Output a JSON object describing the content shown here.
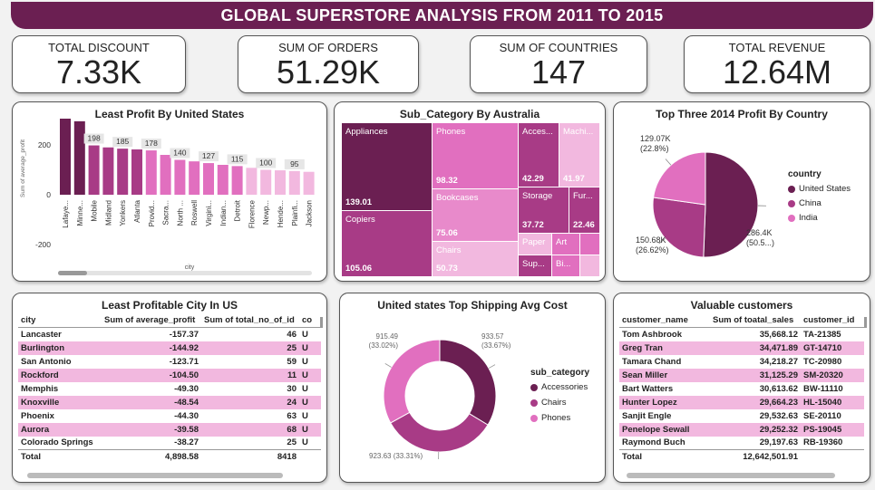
{
  "title": "GLOBAL SUPERSTORE ANALYSIS FROM 2011 TO 2015",
  "kpis": [
    {
      "label": "TOTAL DISCOUNT",
      "value": "7.33K"
    },
    {
      "label": "SUM OF ORDERS",
      "value": "51.29K"
    },
    {
      "label": "SUM OF COUNTRIES",
      "value": "147"
    },
    {
      "label": "TOTAL REVENUE",
      "value": "12.64M"
    }
  ],
  "colors": {
    "dark": "#6b1f52",
    "mid": "#a83b86",
    "light": "#e16fbf",
    "pale": "#f2b8df"
  },
  "bar_panel": {
    "title": "Least Profit By United States",
    "ylabel": "Sum of average_profit",
    "xlabel": "city",
    "y_ticks": [
      "400",
      "200",
      "0",
      "-200"
    ],
    "labels": [
      "323",
      "198",
      "185",
      "178",
      "140",
      "127",
      "115",
      "100",
      "95"
    ]
  },
  "chart_data": [
    {
      "type": "bar",
      "title": "Least Profit By United States",
      "xlabel": "city",
      "ylabel": "Sum of average_profit",
      "ylim": [
        -200,
        400
      ],
      "categories": [
        "Lafaye...",
        "Minne...",
        "Mobile",
        "Midland",
        "Yonkers",
        "Atlanta",
        "Provid...",
        "Sacra...",
        "North ...",
        "Roswell",
        "Virgini...",
        "Indian...",
        "Detroit",
        "Florence",
        "Newp...",
        "Hende...",
        "Plainfi...",
        "Jackson"
      ],
      "values": [
        323,
        295,
        198,
        190,
        185,
        182,
        178,
        160,
        140,
        134,
        127,
        120,
        115,
        108,
        100,
        98,
        95,
        92
      ]
    },
    {
      "type": "pie",
      "title": "Top Three 2014 Profit By Country",
      "legend_title": "country",
      "categories": [
        "United States",
        "China",
        "India"
      ],
      "values": [
        286.4,
        150.68,
        129.07
      ],
      "value_labels": [
        "286.4K (50.5...)",
        "150.68K (26.62%)",
        "129.07K (22.8%)"
      ]
    },
    {
      "type": "pie",
      "title": "United states Top Shipping Avg Cost",
      "legend_title": "sub_category",
      "categories": [
        "Accessories",
        "Chairs",
        "Phones"
      ],
      "values": [
        933.57,
        923.63,
        915.49
      ],
      "value_labels": [
        "933.57 (33.67%)",
        "923.63 (33.31%)",
        "915.49 (33.02%)"
      ]
    }
  ],
  "treemap": {
    "title": "Sub_Category By Australia",
    "cells": [
      {
        "label": "Appliances",
        "value": "139.01"
      },
      {
        "label": "Copiers",
        "value": "105.06"
      },
      {
        "label": "Phones",
        "value": "98.32"
      },
      {
        "label": "Bookcases",
        "value": "75.06"
      },
      {
        "label": "Chairs",
        "value": "50.73"
      },
      {
        "label": "Acces...",
        "value": "42.29"
      },
      {
        "label": "Machi...",
        "value": "41.97"
      },
      {
        "label": "Storage",
        "value": "37.72"
      },
      {
        "label": "Fur...",
        "value": "22.46"
      },
      {
        "label": "Paper",
        "value": ""
      },
      {
        "label": "Art",
        "value": ""
      },
      {
        "label": "Sup...",
        "value": ""
      },
      {
        "label": "Bi...",
        "value": ""
      }
    ]
  },
  "pie_panel": {
    "title": "Top Three 2014 Profit By Country",
    "legend_title": "country",
    "legend": [
      "United States",
      "China",
      "India"
    ],
    "labels": [
      {
        "line1": "286.4K",
        "line2": "(50.5...)"
      },
      {
        "line1": "150.68K",
        "line2": "(26.62%)"
      },
      {
        "line1": "129.07K",
        "line2": "(22.8%)"
      }
    ]
  },
  "donut_panel": {
    "title": "United states Top Shipping Avg Cost",
    "legend_title": "sub_category",
    "legend": [
      "Accessories",
      "Chairs",
      "Phones"
    ],
    "labels": [
      {
        "line1": "933.57",
        "line2": "(33.67%)"
      },
      {
        "line1": "923.63 (33.31%)",
        "line2": ""
      },
      {
        "line1": "915.49",
        "line2": "(33.02%)"
      }
    ]
  },
  "city_table": {
    "title": "Least Profitable City In US",
    "columns": [
      "city",
      "Sum of average_profit",
      "Sum of total_no_of_id",
      "co"
    ],
    "rows": [
      [
        "Lancaster",
        "-157.37",
        "46",
        "U"
      ],
      [
        "Burlington",
        "-144.92",
        "25",
        "U"
      ],
      [
        "San Antonio",
        "-123.71",
        "59",
        "U"
      ],
      [
        "Rockford",
        "-104.50",
        "11",
        "U"
      ],
      [
        "Memphis",
        "-49.30",
        "30",
        "U"
      ],
      [
        "Knoxville",
        "-48.54",
        "24",
        "U"
      ],
      [
        "Phoenix",
        "-44.30",
        "63",
        "U"
      ],
      [
        "Aurora",
        "-39.58",
        "68",
        "U"
      ],
      [
        "Colorado Springs",
        "-38.27",
        "25",
        "U"
      ]
    ],
    "total": [
      "Total",
      "4,898.58",
      "8418",
      ""
    ]
  },
  "customer_table": {
    "title": "Valuable customers",
    "columns": [
      "customer_name",
      "Sum of toatal_sales",
      "customer_id"
    ],
    "rows": [
      [
        "Tom Ashbrook",
        "35,668.12",
        "TA-21385"
      ],
      [
        "Greg Tran",
        "34,471.89",
        "GT-14710"
      ],
      [
        "Tamara Chand",
        "34,218.27",
        "TC-20980"
      ],
      [
        "Sean Miller",
        "31,125.29",
        "SM-20320"
      ],
      [
        "Bart Watters",
        "30,613.62",
        "BW-11110"
      ],
      [
        "Hunter Lopez",
        "29,664.23",
        "HL-15040"
      ],
      [
        "Sanjit Engle",
        "29,532.63",
        "SE-20110"
      ],
      [
        "Penelope Sewall",
        "29,252.32",
        "PS-19045"
      ],
      [
        "Raymond Buch",
        "29,197.63",
        "RB-19360"
      ]
    ],
    "total": [
      "Total",
      "12,642,501.91",
      ""
    ]
  }
}
